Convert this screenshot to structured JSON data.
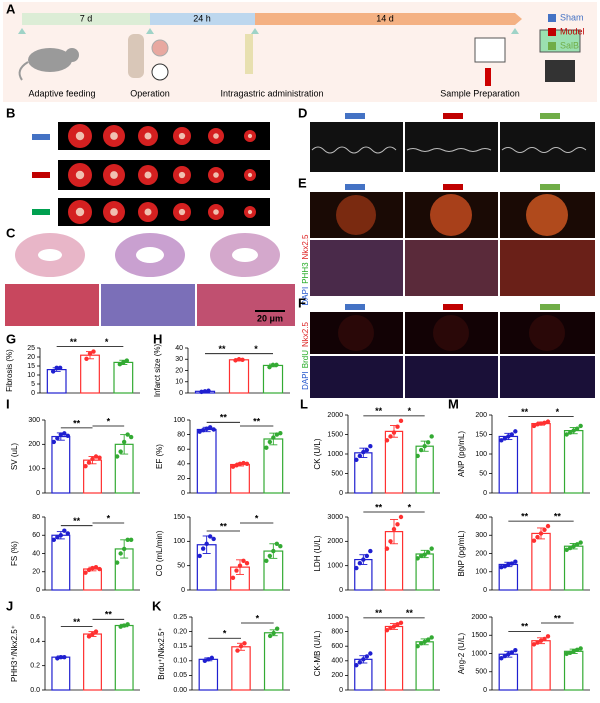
{
  "panels": {
    "labels": [
      "A",
      "B",
      "C",
      "D",
      "E",
      "F",
      "G",
      "H",
      "I",
      "J",
      "K",
      "L",
      "M"
    ]
  },
  "timeline": {
    "phases": [
      "7 d",
      "24 h",
      "14 d"
    ],
    "steps": [
      "Adaptive feeding",
      "Operation",
      "Intragastric administration",
      "Sample Preparation"
    ]
  },
  "legend": [
    {
      "name": "Sham",
      "color": "#4472c4"
    },
    {
      "name": "Model",
      "color": "#c00000"
    },
    {
      "name": "SalB",
      "color": "#70ad47"
    }
  ],
  "scale_bar": "20 μm",
  "stain_labels": {
    "E": [
      "DAPI",
      "PHH3",
      "Nkx2.5"
    ],
    "F": [
      "DAPI",
      "BrdU",
      "Nkx2.5"
    ]
  },
  "chart_data": [
    {
      "type": "bar",
      "ylabel": "Fibrosis (%)",
      "values": [
        13,
        21,
        17
      ],
      "errors": [
        1,
        2,
        1.2
      ],
      "points": [
        [
          12,
          14,
          14
        ],
        [
          19,
          22,
          23
        ],
        [
          16,
          17,
          18
        ]
      ],
      "colors": [
        "#1f1fd0",
        "#ff3030",
        "#33aa33"
      ],
      "ylim": [
        0,
        25
      ],
      "yticks": [
        0,
        5,
        10,
        15,
        20,
        25
      ],
      "significance": [
        "**",
        "*"
      ]
    },
    {
      "type": "bar",
      "ylabel": "Infarct size (%)",
      "values": [
        1.5,
        29.5,
        24.5
      ],
      "errors": [
        0.6,
        1,
        1.2
      ],
      "points": [
        [
          1,
          1.5,
          2
        ],
        [
          29,
          30,
          29.5
        ],
        [
          23,
          25,
          25
        ]
      ],
      "colors": [
        "#1f1fd0",
        "#ff3030",
        "#33aa33"
      ],
      "ylim": [
        0,
        40
      ],
      "yticks": [
        0,
        10,
        20,
        30,
        40
      ],
      "significance": [
        "**",
        "*"
      ]
    },
    {
      "type": "bar",
      "ylabel": "SV (uL)",
      "values": [
        232,
        135,
        200
      ],
      "errors": [
        15,
        15,
        40
      ],
      "points": [
        [
          210,
          225,
          240,
          245,
          235
        ],
        [
          110,
          125,
          140,
          150,
          145
        ],
        [
          150,
          170,
          210,
          240,
          230
        ]
      ],
      "colors": [
        "#1f1fd0",
        "#ff3030",
        "#33aa33"
      ],
      "ylim": [
        0,
        300
      ],
      "yticks": [
        0,
        100,
        200,
        300
      ],
      "significance": [
        "**",
        "*"
      ]
    },
    {
      "type": "bar",
      "ylabel": "EF (%)",
      "values": [
        87,
        39,
        74
      ],
      "errors": [
        3,
        2,
        8
      ],
      "points": [
        [
          84,
          86,
          88,
          90,
          87
        ],
        [
          36,
          38,
          40,
          41,
          40
        ],
        [
          62,
          70,
          76,
          80,
          82
        ]
      ],
      "colors": [
        "#1f1fd0",
        "#ff3030",
        "#33aa33"
      ],
      "ylim": [
        0,
        100
      ],
      "yticks": [
        0,
        20,
        40,
        60,
        80,
        100
      ],
      "significance": [
        "**",
        "**"
      ]
    },
    {
      "type": "bar",
      "ylabel": "FS (%)",
      "values": [
        60,
        23,
        45
      ],
      "errors": [
        4,
        2,
        10
      ],
      "points": [
        [
          55,
          58,
          60,
          65,
          62
        ],
        [
          19,
          22,
          24,
          25,
          23
        ],
        [
          30,
          40,
          45,
          55,
          55
        ]
      ],
      "colors": [
        "#1f1fd0",
        "#ff3030",
        "#33aa33"
      ],
      "ylim": [
        0,
        80
      ],
      "yticks": [
        0,
        20,
        40,
        60,
        80
      ],
      "significance": [
        "**",
        "*"
      ]
    },
    {
      "type": "bar",
      "ylabel": "CO (mL/min)",
      "values": [
        93,
        47,
        80
      ],
      "errors": [
        18,
        15,
        15
      ],
      "points": [
        [
          70,
          85,
          95,
          110,
          105
        ],
        [
          25,
          40,
          50,
          60,
          55
        ],
        [
          60,
          70,
          80,
          95,
          90
        ]
      ],
      "colors": [
        "#1f1fd0",
        "#ff3030",
        "#33aa33"
      ],
      "ylim": [
        0,
        150
      ],
      "yticks": [
        0,
        50,
        100,
        150
      ],
      "significance": [
        "**",
        "*"
      ]
    },
    {
      "type": "bar",
      "ylabel": "PHH3⁺/Nkx2.5⁺",
      "values": [
        0.27,
        0.46,
        0.53
      ],
      "errors": [
        0.01,
        0.02,
        0.01
      ],
      "points": [
        [
          0.26,
          0.27,
          0.27
        ],
        [
          0.44,
          0.46,
          0.48
        ],
        [
          0.52,
          0.53,
          0.54
        ]
      ],
      "colors": [
        "#1f1fd0",
        "#ff3030",
        "#33aa33"
      ],
      "ylim": [
        0,
        0.6
      ],
      "yticks": [
        {
          "value": 0,
          "label": "0.0"
        },
        0.2,
        0.4,
        0.6
      ],
      "significance": [
        "**",
        "**"
      ]
    },
    {
      "type": "bar",
      "ylabel": "Brdu⁺/Nkx2.5⁺",
      "values": [
        0.105,
        0.148,
        0.196
      ],
      "errors": [
        0.005,
        0.012,
        0.01
      ],
      "points": [
        [
          0.1,
          0.105,
          0.11
        ],
        [
          0.135,
          0.15,
          0.16
        ],
        [
          0.185,
          0.195,
          0.21
        ]
      ],
      "colors": [
        "#1f1fd0",
        "#ff3030",
        "#33aa33"
      ],
      "ylim": [
        0,
        0.25
      ],
      "yticks": [
        {
          "value": 0,
          "label": "0.00"
        },
        0.05,
        {
          "value": 0.1,
          "label": "0.10"
        },
        0.15,
        {
          "value": 0.2,
          "label": "0.20"
        },
        0.25
      ],
      "significance": [
        "*",
        "*"
      ]
    },
    {
      "type": "bar",
      "ylabel": "CK (U/L)",
      "values": [
        1030,
        1580,
        1200
      ],
      "errors": [
        120,
        150,
        130
      ],
      "points": [
        [
          850,
          950,
          1050,
          1100,
          1200
        ],
        [
          1350,
          1450,
          1550,
          1700,
          1850
        ],
        [
          950,
          1100,
          1200,
          1300,
          1450
        ]
      ],
      "colors": [
        "#1f1fd0",
        "#ff3030",
        "#33aa33"
      ],
      "ylim": [
        0,
        2000
      ],
      "yticks": [
        0,
        500,
        1000,
        1500,
        2000
      ],
      "significance": [
        "**",
        "*"
      ]
    },
    {
      "type": "bar",
      "ylabel": "LDH (U/L)",
      "values": [
        1250,
        2400,
        1480
      ],
      "errors": [
        200,
        500,
        150
      ],
      "points": [
        [
          900,
          1100,
          1250,
          1400,
          1600
        ],
        [
          1700,
          2000,
          2500,
          2700,
          3000
        ],
        [
          1300,
          1400,
          1450,
          1550,
          1700
        ]
      ],
      "colors": [
        "#1f1fd0",
        "#ff3030",
        "#33aa33"
      ],
      "ylim": [
        0,
        3000
      ],
      "yticks": [
        0,
        1000,
        2000,
        3000
      ],
      "significance": [
        "**",
        "*"
      ]
    },
    {
      "type": "bar",
      "ylabel": "CK-MB (U/L)",
      "values": [
        420,
        870,
        660
      ],
      "errors": [
        50,
        40,
        40
      ],
      "points": [
        [
          340,
          380,
          420,
          460,
          500
        ],
        [
          820,
          850,
          870,
          900,
          920
        ],
        [
          600,
          640,
          660,
          690,
          720
        ]
      ],
      "colors": [
        "#1f1fd0",
        "#ff3030",
        "#33aa33"
      ],
      "ylim": [
        0,
        1000
      ],
      "yticks": [
        0,
        200,
        400,
        600,
        800,
        1000
      ],
      "significance": [
        "**",
        "**"
      ]
    },
    {
      "type": "bar",
      "ylabel": "ANP (pg/mL)",
      "values": [
        145,
        178,
        160
      ],
      "errors": [
        8,
        4,
        8
      ],
      "points": [
        [
          135,
          140,
          145,
          150,
          158
        ],
        [
          172,
          176,
          178,
          180,
          183
        ],
        [
          150,
          155,
          160,
          165,
          172
        ]
      ],
      "colors": [
        "#1f1fd0",
        "#ff3030",
        "#33aa33"
      ],
      "ylim": [
        0,
        200
      ],
      "yticks": [
        0,
        50,
        100,
        150,
        200
      ],
      "significance": [
        "**",
        "*"
      ]
    },
    {
      "type": "bar",
      "ylabel": "BNP (pg/mL)",
      "values": [
        140,
        310,
        240
      ],
      "errors": [
        12,
        30,
        15
      ],
      "points": [
        [
          125,
          130,
          140,
          145,
          155
        ],
        [
          270,
          290,
          310,
          330,
          350
        ],
        [
          220,
          230,
          240,
          250,
          260
        ]
      ],
      "colors": [
        "#1f1fd0",
        "#ff3030",
        "#33aa33"
      ],
      "ylim": [
        0,
        400
      ],
      "yticks": [
        0,
        100,
        200,
        300,
        400
      ],
      "significance": [
        "**",
        "**"
      ]
    },
    {
      "type": "bar",
      "ylabel": "Ang-2 (U/L)",
      "values": [
        980,
        1350,
        1060
      ],
      "errors": [
        80,
        80,
        60
      ],
      "points": [
        [
          870,
          930,
          980,
          1030,
          1090
        ],
        [
          1250,
          1300,
          1350,
          1400,
          1470
        ],
        [
          990,
          1020,
          1060,
          1100,
          1140
        ]
      ],
      "colors": [
        "#1f1fd0",
        "#ff3030",
        "#33aa33"
      ],
      "ylim": [
        0,
        2000
      ],
      "yticks": [
        0,
        500,
        1000,
        1500,
        2000
      ],
      "significance": [
        "**",
        "**"
      ]
    }
  ]
}
